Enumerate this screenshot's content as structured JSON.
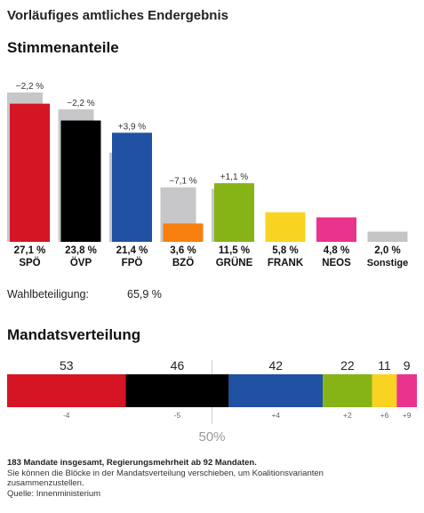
{
  "header": {
    "title": "Vorläufiges amtliches Endergebnis",
    "votes_heading": "Stimmenanteile",
    "seats_heading": "Mandatsverteilung"
  },
  "turnout": {
    "label": "Wahlbeteiligung:",
    "value": "65,9 %"
  },
  "colors": {
    "SPÖ": "#d51424",
    "ÖVP": "#000000",
    "FPÖ": "#2051a2",
    "BZÖ": "#f77f0e",
    "GRÜNE": "#86b316",
    "FRANK": "#f8d322",
    "NEOS": "#e9338c",
    "Sonstige": "#c4c4c6",
    "previous": "#c7c7c9"
  },
  "chart_data": [
    {
      "type": "bar",
      "title": "Stimmenanteile",
      "categories": [
        "SPÖ",
        "ÖVP",
        "FPÖ",
        "BZÖ",
        "GRÜNE",
        "FRANK",
        "NEOS",
        "Sonstige"
      ],
      "series": [
        {
          "values": [
            27.1,
            23.8,
            21.4,
            3.6,
            11.5,
            5.8,
            4.8,
            2.0
          ]
        },
        {
          "values": [
            29.3,
            26.0,
            17.5,
            10.7,
            10.4,
            null,
            null,
            null
          ]
        }
      ],
      "value_labels": [
        "27,1 %",
        "23,8 %",
        "21,4 %",
        "3,6 %",
        "11,5 %",
        "5,8 %",
        "4,8 %",
        "2,0 %"
      ],
      "change_labels": [
        "−2,2 %",
        "−2,2 %",
        "+3,9 %",
        "−7,1 %",
        "+1,1 %",
        "",
        "",
        ""
      ],
      "ylim": [
        0,
        30
      ]
    },
    {
      "type": "bar",
      "title": "Mandatsverteilung",
      "orientation": "horizontal-stacked",
      "categories": [
        "SPÖ",
        "ÖVP",
        "FPÖ",
        "GRÜNE",
        "FRANK",
        "NEOS"
      ],
      "values": [
        53,
        46,
        42,
        22,
        11,
        9
      ],
      "change_labels": [
        "-4",
        "-5",
        "+4",
        "+2",
        "+6",
        "+9"
      ],
      "total": 183,
      "majority_label": "50%"
    }
  ],
  "footer": {
    "summary": "183 Mandate insgesamt, Regierungsmehrheit ab 92 Mandaten.",
    "hint": "Sie können die Blöcke in der Mandatsverteilung verschieben, um Koalitionsvarianten zusammenzustellen.",
    "source": "Quelle: Innenministerium"
  }
}
